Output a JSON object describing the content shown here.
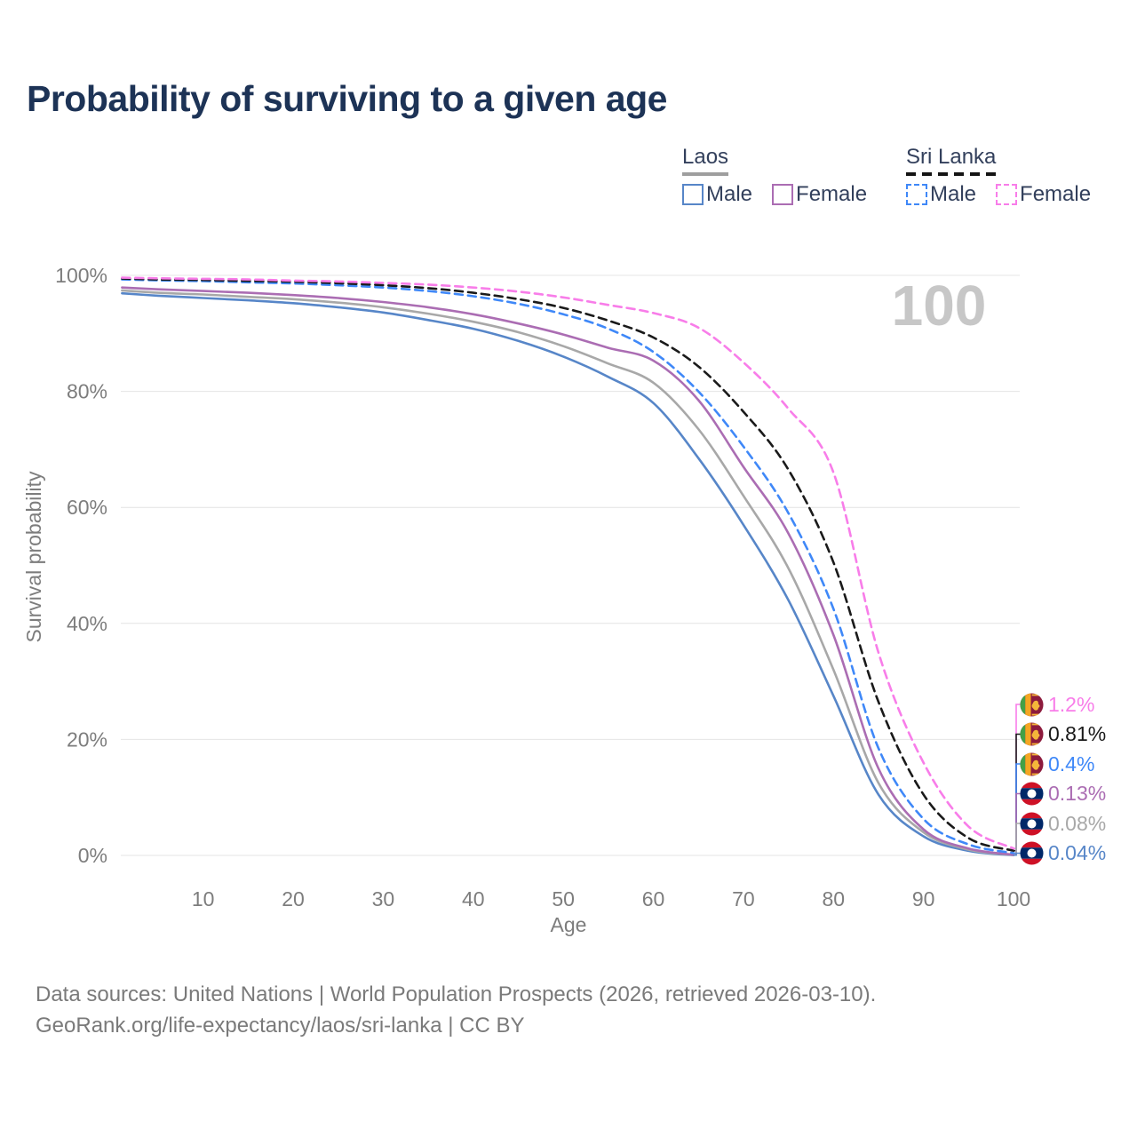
{
  "title": "Probability of surviving to a given age",
  "watermark_age": "100",
  "legend": {
    "groups": [
      {
        "label": "Laos",
        "underline_style": "solid",
        "underline_color": "#9e9e9e",
        "items": [
          {
            "label": "Male",
            "color": "#5786c8",
            "dashed": false
          },
          {
            "label": "Female",
            "color": "#ab6db3",
            "dashed": false
          }
        ]
      },
      {
        "label": "Sri Lanka",
        "underline_style": "dashed",
        "underline_color": "#141414",
        "items": [
          {
            "label": "Male",
            "color": "#3f88f8",
            "dashed": true
          },
          {
            "label": "Female",
            "color": "#f87de9",
            "dashed": true
          }
        ]
      }
    ]
  },
  "chart_data": {
    "type": "line",
    "title": "Probability of surviving to a given age",
    "xlabel": "Age",
    "ylabel": "Survival probability",
    "xlim": [
      1,
      100
    ],
    "ylim": [
      0,
      100
    ],
    "x_ticks": [
      10,
      20,
      30,
      40,
      50,
      60,
      70,
      80,
      90,
      100
    ],
    "y_ticks": [
      0,
      20,
      40,
      60,
      80,
      100
    ],
    "y_tick_suffix": "%",
    "grid": true,
    "legend_position": "top-right",
    "ages": [
      1,
      5,
      10,
      15,
      20,
      25,
      30,
      35,
      40,
      45,
      50,
      55,
      60,
      65,
      70,
      75,
      80,
      85,
      90,
      95,
      100
    ],
    "series": [
      {
        "name": "Sri Lanka Female",
        "country": "Sri Lanka",
        "sex": "Female",
        "color": "#f87de9",
        "dashed": true,
        "flag": "sri-lanka",
        "end_label": "1.2%",
        "values": [
          99.6,
          99.5,
          99.4,
          99.3,
          99.1,
          98.95,
          98.7,
          98.4,
          97.9,
          97.2,
          96.2,
          94.9,
          93.5,
          91.0,
          85.0,
          77.0,
          66.0,
          35.0,
          16.0,
          5.0,
          1.2
        ]
      },
      {
        "name": "Sri Lanka",
        "country": "Sri Lanka",
        "sex": "All",
        "color": "#1a1a1a",
        "dashed": true,
        "flag": "sri-lanka",
        "end_label": "0.81%",
        "values": [
          99.45,
          99.3,
          99.2,
          99.05,
          98.9,
          98.65,
          98.3,
          97.8,
          97.0,
          95.9,
          94.4,
          92.2,
          89.3,
          84.3,
          76.5,
          66.5,
          50.5,
          26.5,
          10.5,
          3.0,
          0.81
        ]
      },
      {
        "name": "Sri Lanka Male",
        "country": "Sri Lanka",
        "sex": "Male",
        "color": "#3f88f8",
        "dashed": true,
        "flag": "sri-lanka",
        "end_label": "0.4%",
        "values": [
          99.3,
          99.15,
          99.0,
          98.8,
          98.6,
          98.3,
          97.9,
          97.3,
          96.4,
          95.1,
          93.3,
          90.8,
          86.8,
          80.0,
          70.5,
          59.0,
          42.5,
          18.5,
          6.3,
          1.9,
          0.4
        ]
      },
      {
        "name": "Laos Female",
        "country": "Laos",
        "sex": "Female",
        "color": "#ab6db3",
        "dashed": false,
        "flag": "laos",
        "end_label": "0.13%",
        "values": [
          97.9,
          97.6,
          97.3,
          97.0,
          96.6,
          96.1,
          95.4,
          94.5,
          93.3,
          91.7,
          89.8,
          87.5,
          85.3,
          78.5,
          67.0,
          55.5,
          38.0,
          15.0,
          4.5,
          1.2,
          0.13
        ]
      },
      {
        "name": "Laos",
        "country": "Laos",
        "sex": "All",
        "color": "#a8a8a8",
        "dashed": false,
        "flag": "laos",
        "end_label": "0.08%",
        "values": [
          97.4,
          97.0,
          96.7,
          96.3,
          95.9,
          95.3,
          94.5,
          93.4,
          92.0,
          90.2,
          87.8,
          84.8,
          81.5,
          73.5,
          62.0,
          49.5,
          32.0,
          12.5,
          4.0,
          1.0,
          0.08
        ]
      },
      {
        "name": "Laos Male",
        "country": "Laos",
        "sex": "Male",
        "color": "#5786c8",
        "dashed": false,
        "flag": "laos",
        "end_label": "0.04%",
        "values": [
          96.9,
          96.5,
          96.1,
          95.7,
          95.2,
          94.5,
          93.6,
          92.3,
          90.8,
          88.7,
          86.0,
          82.5,
          78.0,
          68.5,
          57.0,
          44.0,
          27.5,
          10.5,
          3.3,
          0.8,
          0.04
        ]
      }
    ]
  },
  "footer": {
    "line1": "Data sources: United Nations | World Population Prospects (2026, retrieved 2026-03-10).",
    "line2": "GeoRank.org/life-expectancy/laos/sri-lanka | CC BY"
  }
}
